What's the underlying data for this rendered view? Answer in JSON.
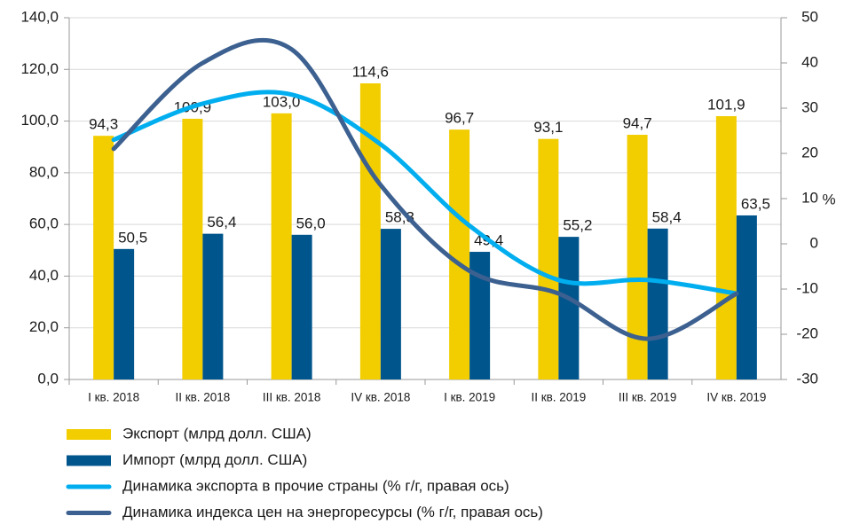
{
  "chart_data": {
    "type": "bar",
    "categories": [
      "I кв. 2018",
      "II кв. 2018",
      "III кв. 2018",
      "IV кв. 2018",
      "I кв. 2019",
      "II кв. 2019",
      "III кв. 2019",
      "IV кв. 2019"
    ],
    "series": [
      {
        "name": "Экспорт (млрд долл. США)",
        "type": "bar",
        "color": "#f2cd00",
        "values": [
          94.3,
          100.9,
          103.0,
          114.6,
          96.7,
          93.1,
          94.7,
          101.9
        ],
        "value_labels": [
          "94,3",
          "100,9",
          "103,0",
          "114,6",
          "96,7",
          "93,1",
          "94,7",
          "101,9"
        ]
      },
      {
        "name": "Импорт (млрд долл. США)",
        "type": "bar",
        "color": "#00558c",
        "values": [
          50.5,
          56.4,
          56.0,
          58.3,
          49.4,
          55.2,
          58.4,
          63.5
        ],
        "value_labels": [
          "50,5",
          "56,4",
          "56,0",
          "58,3",
          "49,4",
          "55,2",
          "58,4",
          "63,5"
        ]
      },
      {
        "name": "Динамика экспорта в прочие страны (% г/г, правая ось)",
        "type": "line",
        "axis": "y2",
        "color": "#00aeef",
        "values": [
          23,
          31,
          33,
          22,
          4,
          -8,
          -8,
          -11
        ]
      },
      {
        "name": "Динамика индекса цен на энергоресурсы (% г/г, правая ось)",
        "type": "line",
        "axis": "y2",
        "color": "#3c6090",
        "values": [
          21,
          40,
          43,
          13,
          -6,
          -11,
          -21,
          -11
        ]
      }
    ],
    "ylim": [
      0,
      140
    ],
    "yticks": [
      {
        "value": 0,
        "label": "0,0"
      },
      {
        "value": 20,
        "label": "20,0"
      },
      {
        "value": 40,
        "label": "40,0"
      },
      {
        "value": 60,
        "label": "60,0"
      },
      {
        "value": 80,
        "label": "80,0"
      },
      {
        "value": 100,
        "label": "100,0"
      },
      {
        "value": 120,
        "label": "120,0"
      },
      {
        "value": 140,
        "label": "140,0"
      }
    ],
    "y2lim": [
      -30,
      50
    ],
    "y2ticks": [
      -30,
      -20,
      -10,
      0,
      10,
      20,
      30,
      40,
      50
    ],
    "y2label": "%",
    "grid": true
  }
}
